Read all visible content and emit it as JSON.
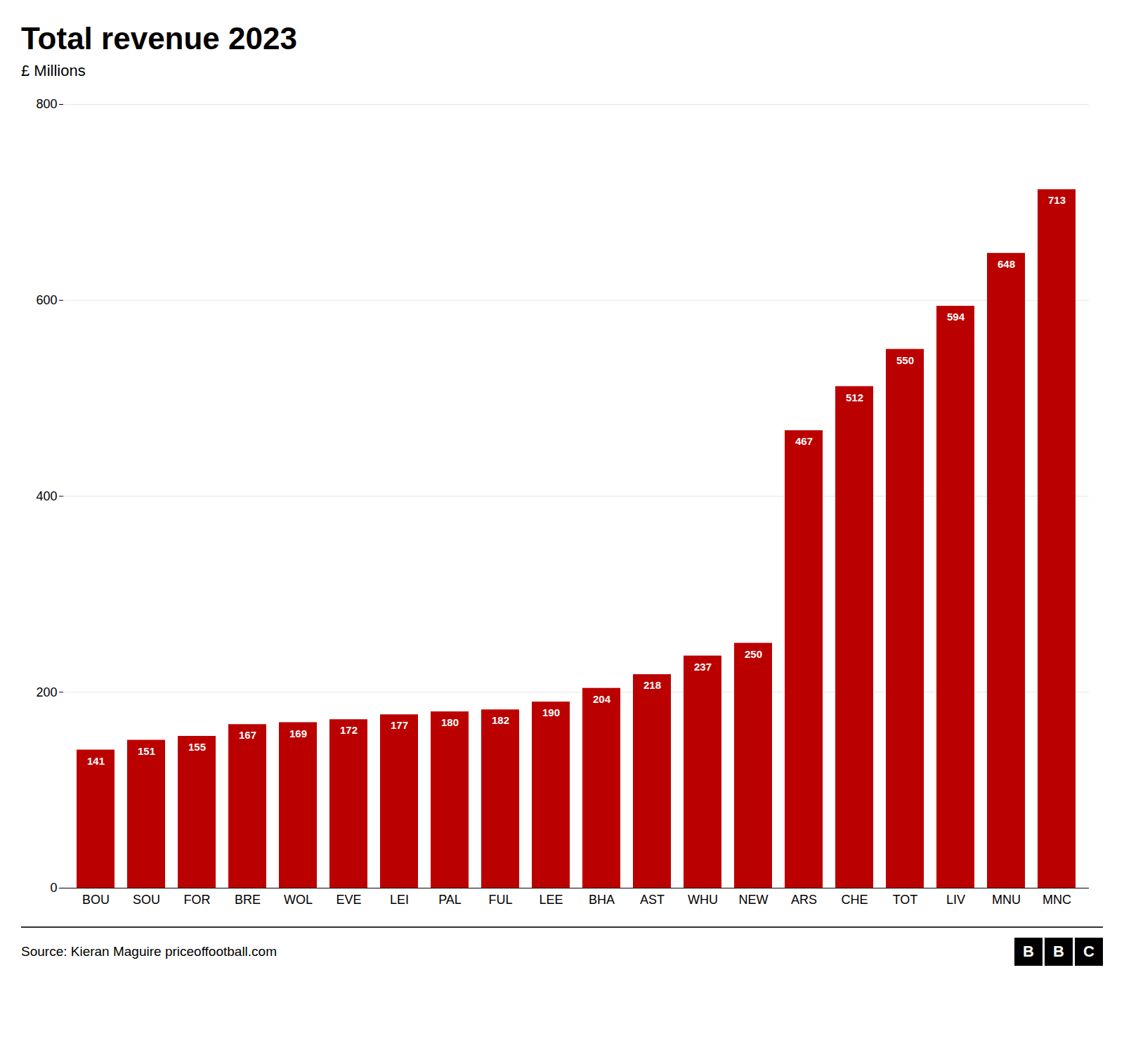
{
  "chart_data": {
    "type": "bar",
    "title": "Total revenue 2023",
    "subtitle": "£ Millions",
    "source": "Source: Kieran Maguire priceoffootball.com",
    "annotations": [
      "B",
      "B",
      "C"
    ],
    "categories": [
      "BOU",
      "SOU",
      "FOR",
      "BRE",
      "WOL",
      "EVE",
      "LEI",
      "PAL",
      "FUL",
      "LEE",
      "BHA",
      "AST",
      "WHU",
      "NEW",
      "ARS",
      "CHE",
      "TOT",
      "LIV",
      "MNU",
      "MNC"
    ],
    "values": [
      141,
      151,
      155,
      167,
      169,
      172,
      177,
      180,
      182,
      190,
      204,
      218,
      237,
      250,
      467,
      512,
      550,
      594,
      648,
      713
    ],
    "color": "#bb0000",
    "ylim": [
      0,
      800
    ],
    "yticks": [
      0,
      200,
      400,
      600,
      800
    ],
    "grid": true,
    "data_labels": true
  }
}
